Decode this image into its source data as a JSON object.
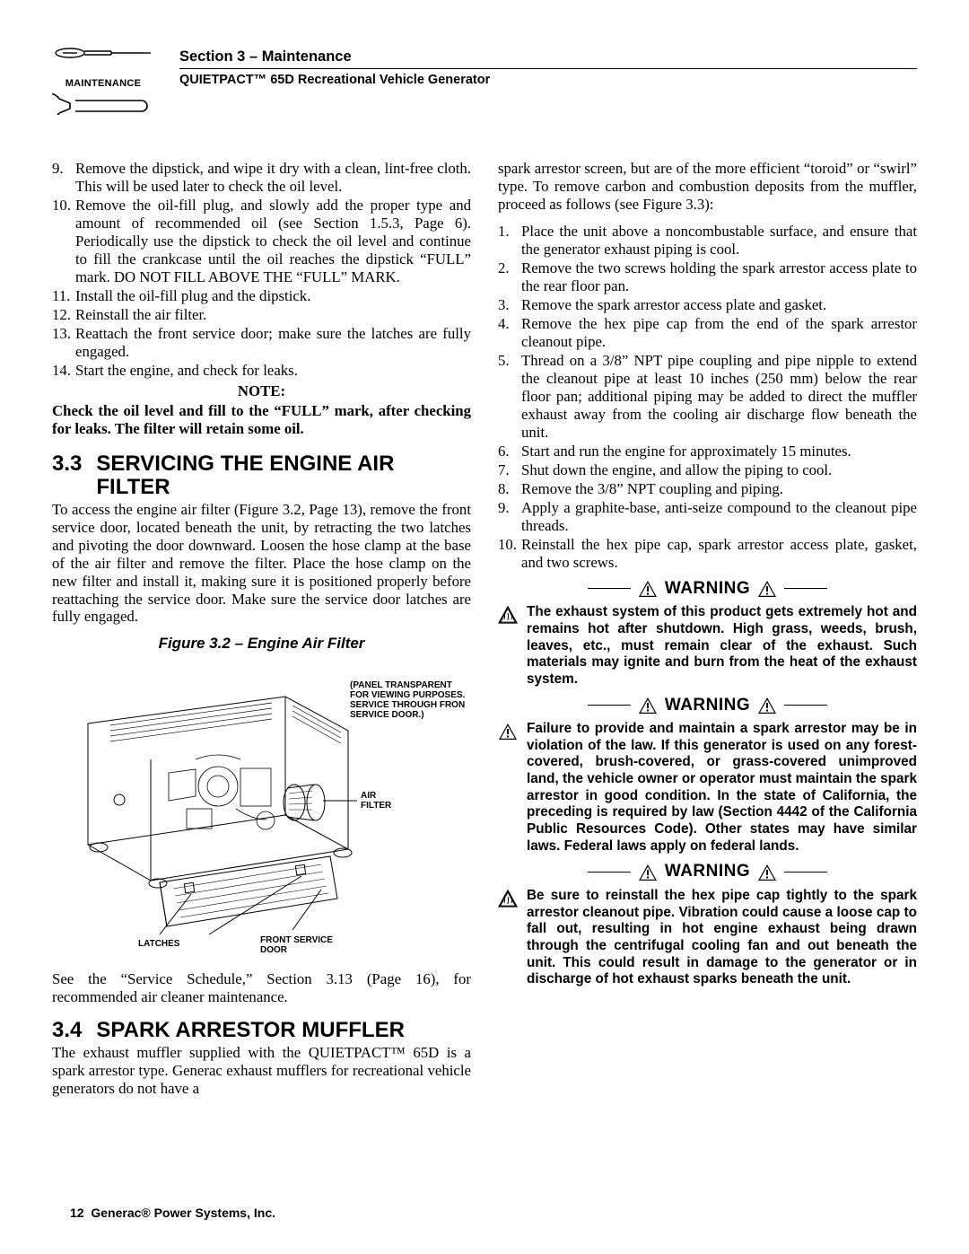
{
  "header": {
    "maintenance_label": "MAINTENANCE",
    "section_title": "Section 3 – Maintenance",
    "subtitle": "QUIETPACT™ 65D Recreational Vehicle Generator"
  },
  "left_list": [
    {
      "n": "9.",
      "t": "Remove the dipstick, and wipe it dry with a clean, lint-free cloth. This will be used later to check the oil level."
    },
    {
      "n": "10.",
      "t": "Remove the oil-fill plug, and slowly add the proper type and amount of recommended oil (see Section 1.5.3, Page 6). Periodically use the dipstick to check the oil level and continue to fill the crankcase until the oil reaches the dipstick “FULL” mark. DO NOT FILL ABOVE THE “FULL” MARK."
    },
    {
      "n": "11.",
      "t": "Install the oil-fill plug and the dipstick."
    },
    {
      "n": "12.",
      "t": "Reinstall the air filter."
    },
    {
      "n": "13.",
      "t": "Reattach the front service door; make sure the latches are fully engaged."
    },
    {
      "n": "14.",
      "t": "Start the engine, and check for leaks."
    }
  ],
  "note": {
    "label": "NOTE:",
    "text": "Check the oil level and fill to the “FULL” mark, after checking for leaks. The filter will retain some oil."
  },
  "section33": {
    "num": "3.3",
    "title": "SERVICING THE ENGINE AIR FILTER",
    "para": "To access the engine air filter (Figure 3.2, Page 13), remove the front service door, located beneath the unit, by retracting the two latches and pivoting the door downward. Loosen the hose clamp at the base of the air filter and remove the filter. Place the hose clamp on the new filter and install it, making sure it is positioned properly before reattaching the service door. Make sure the service door latches are fully engaged."
  },
  "figure": {
    "caption": "Figure 3.2 – Engine Air Filter",
    "callouts": {
      "panel": "(PANEL TRANSPARENT FOR VIEWING PURPOSES. SERVICE THROUGH FRONT SERVICE DOOR.)",
      "air_filter": "AIR FILTER",
      "latches": "LATCHES",
      "front_door": "FRONT SERVICE DOOR"
    },
    "strokes": {
      "main": "#000000",
      "width": 1,
      "thin": 0.7
    },
    "font": {
      "family": "Arial",
      "size": 9,
      "weight": "bold"
    }
  },
  "after_fig": "See the “Service Schedule,” Section 3.13 (Page 16), for recommended air cleaner maintenance.",
  "section34": {
    "num": "3.4",
    "title": "SPARK ARRESTOR MUFFLER",
    "para": "The exhaust muffler supplied with the QUIETPACT™ 65D is a spark arrestor type. Generac exhaust mufflers for recreational vehicle generators do not have a"
  },
  "right_intro": "spark arrestor screen, but are of the more efficient “toroid” or “swirl” type. To remove carbon and combustion deposits from the muffler, proceed as follows (see Figure 3.3):",
  "right_list": [
    {
      "n": "1.",
      "t": "Place the unit above a noncombustable surface, and ensure that the generator exhaust piping is cool."
    },
    {
      "n": "2.",
      "t": "Remove the two screws holding the spark arrestor access plate to the rear floor pan."
    },
    {
      "n": "3.",
      "t": "Remove the spark arrestor access plate and gasket."
    },
    {
      "n": "4.",
      "t": "Remove the hex pipe cap from the end of the spark arrestor cleanout pipe."
    },
    {
      "n": "5.",
      "t": "Thread on a 3/8” NPT pipe coupling and pipe nipple to extend the cleanout pipe at least 10 inches (250 mm) below the rear floor pan; additional piping may be added to direct the muffler exhaust away from the cooling air discharge flow beneath the unit."
    },
    {
      "n": "6.",
      "t": "Start and run the engine for approximately 15 minutes."
    },
    {
      "n": "7.",
      "t": "Shut down the engine, and allow the piping to cool."
    },
    {
      "n": "8.",
      "t": "Remove the 3/8” NPT coupling and piping."
    },
    {
      "n": "9.",
      "t": "Apply a graphite-base, anti-seize compound to the cleanout pipe threads."
    },
    {
      "n": "10.",
      "t": "Reinstall the hex pipe cap, spark arrestor access plate, gasket, and two screws."
    }
  ],
  "warning_label": "WARNING",
  "warnings": [
    {
      "icon": "hot",
      "text": "The exhaust system of this product gets extremely hot and remains hot after shutdown. High grass, weeds, brush, leaves, etc., must remain clear of the exhaust. Such materials may ignite and burn from the heat of the exhaust system."
    },
    {
      "icon": "tri",
      "text": "Failure to provide and maintain a spark arrestor may be in violation of the law. If this generator is used on any forest-covered, brush-covered, or grass-covered unimproved land, the vehicle owner or operator must maintain the spark arrestor in good condition. In the state of California, the preceding is required by law (Section 4442 of the California Public Resources Code). Other states may have similar laws. Federal laws apply on federal lands."
    },
    {
      "icon": "hot",
      "text": "Be sure to reinstall the hex pipe cap tightly to the spark arrestor cleanout pipe. Vibration could cause a loose cap to fall out, resulting in hot engine exhaust being drawn through the centrifugal cooling fan and out beneath the unit. This could result in damage to the generator or in discharge of hot exhaust sparks beneath the unit."
    }
  ],
  "footer": {
    "page": "12",
    "co": "Generac® Power Systems, Inc."
  }
}
